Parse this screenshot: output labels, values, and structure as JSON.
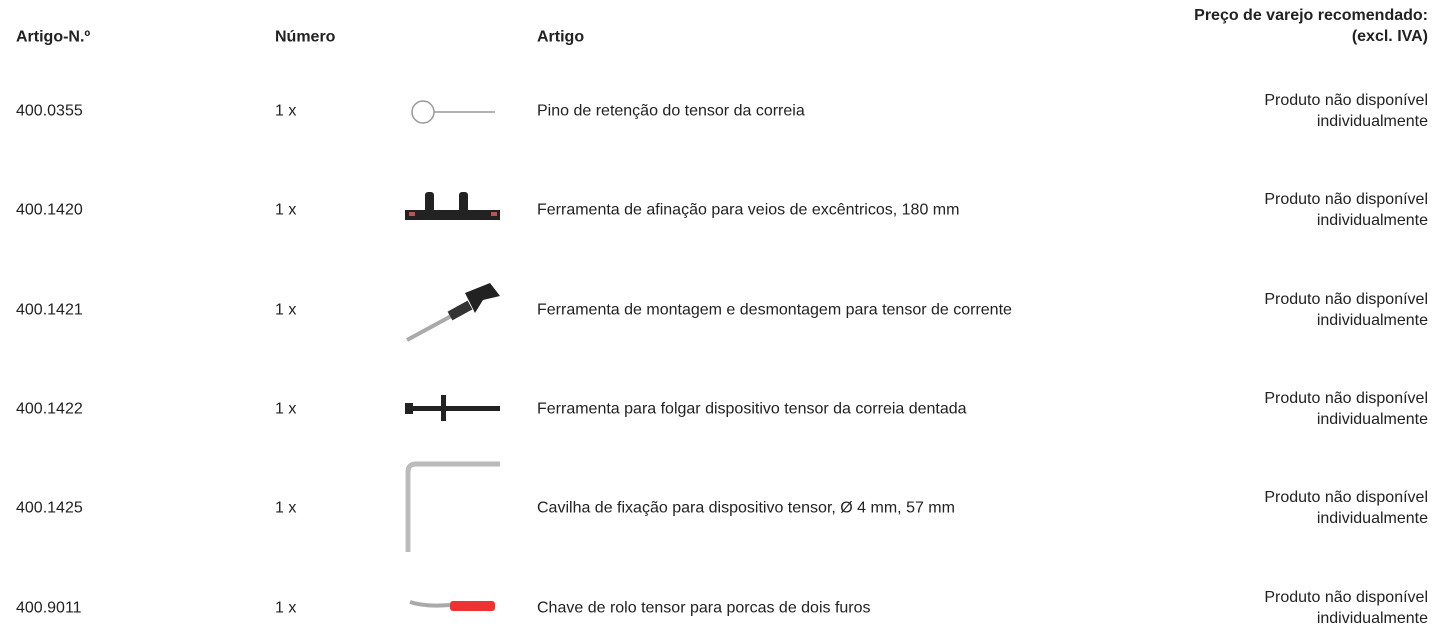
{
  "table": {
    "header": [
      "Artigo-N.º",
      "Número",
      "Artigo",
      "Preço de varejo recomendado: (excl. IVA)"
    ],
    "rows": [
      [
        "400.0355",
        "1 x",
        "Pino de retenção do tensor da correia",
        "Produto não disponível individualmente"
      ],
      [
        "400.1420",
        "1 x",
        "Ferramenta de afinação para veios de excêntricos, 180 mm",
        "Produto não disponível individualmente"
      ],
      [
        "400.1421",
        "1 x",
        "Ferramenta de montagem e desmontagem para tensor de corrente",
        "Produto não disponível individualmente"
      ],
      [
        "400.1422",
        "1 x",
        "Ferramenta para folgar dispositivo tensor da correia dentada",
        "Produto não disponível individualmente"
      ],
      [
        "400.1425",
        "1 x",
        "Cavilha de fixação para dispositivo tensor, Ø 4 mm, 57 mm",
        "Produto não disponível individualmente"
      ],
      [
        "400.9011",
        "1 x",
        "Chave de rolo tensor para porcas de dois furos",
        "Produto não disponível individualmente"
      ]
    ]
  }
}
